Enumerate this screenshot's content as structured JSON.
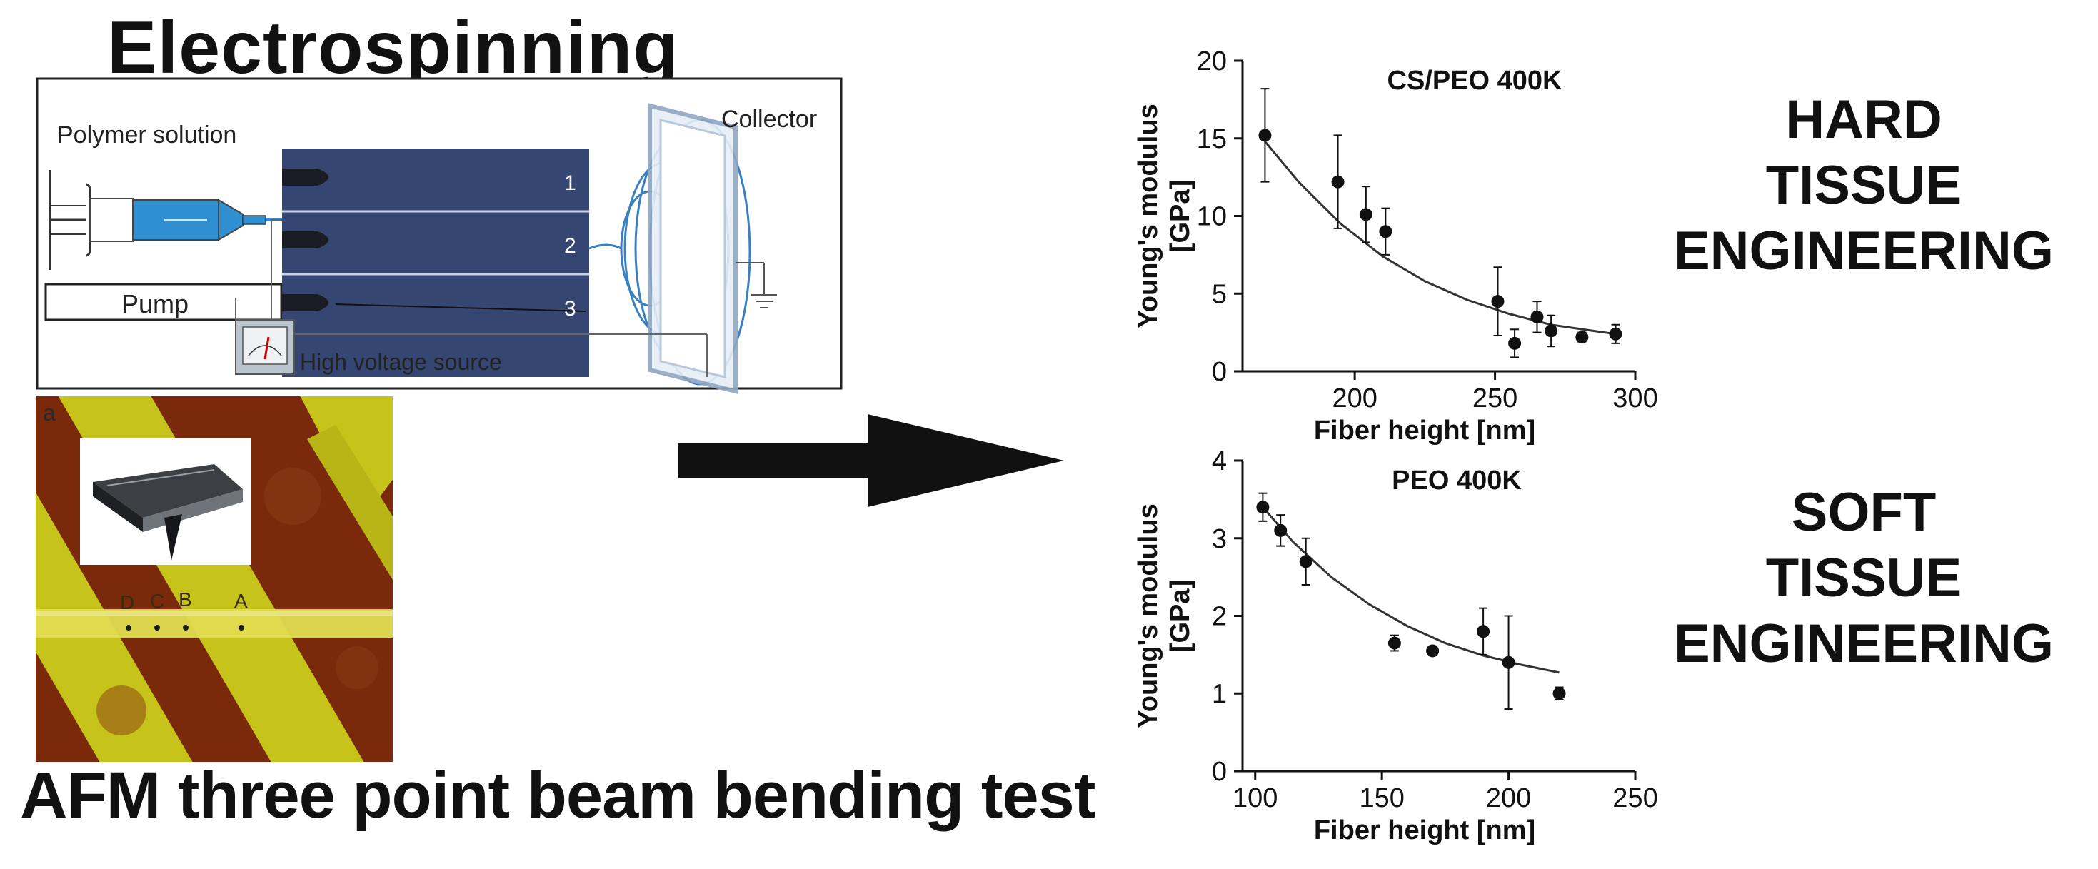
{
  "titles": {
    "electrospinning": "Electrospinning",
    "afm_test": "AFM three point beam bending test"
  },
  "setup": {
    "polymer_solution": "Polymer solution",
    "pump": "Pump",
    "collector": "Collector",
    "high_voltage": "High voltage source",
    "jets": [
      "1",
      "2",
      "3"
    ]
  },
  "afm": {
    "panel_letter": "a",
    "points": [
      "D",
      "C",
      "B",
      "A"
    ],
    "colors": {
      "stripe": "#d8d41e",
      "background": "#7a2a0a"
    }
  },
  "labels": {
    "hard": [
      "HARD",
      "TISSUE",
      "ENGINEERING"
    ],
    "soft": [
      "SOFT",
      "TISSUE",
      "ENGINEERING"
    ]
  },
  "chart_data": [
    {
      "type": "scatter",
      "title": "CS/PEO 400K",
      "xlabel": "Fiber height [nm]",
      "ylabel": "Young's modulus",
      "ylabel2": "[GPa]",
      "xlim": [
        160,
        300
      ],
      "ylim": [
        0,
        20
      ],
      "xticks": [
        200,
        250,
        300
      ],
      "yticks": [
        0,
        5,
        10,
        15,
        20
      ],
      "points": [
        {
          "x": 168,
          "y": 15.2,
          "err": 3.0
        },
        {
          "x": 194,
          "y": 12.2,
          "err": 3.0
        },
        {
          "x": 204,
          "y": 10.1,
          "err": 1.8
        },
        {
          "x": 211,
          "y": 9.0,
          "err": 1.5
        },
        {
          "x": 251,
          "y": 4.5,
          "err": 2.2
        },
        {
          "x": 257,
          "y": 1.8,
          "err": 0.9
        },
        {
          "x": 265,
          "y": 3.5,
          "err": 1.0
        },
        {
          "x": 270,
          "y": 2.6,
          "err": 1.0
        },
        {
          "x": 281,
          "y": 2.2,
          "err": 0.3
        },
        {
          "x": 293,
          "y": 2.4,
          "err": 0.6
        }
      ],
      "fit": {
        "x": [
          168,
          180,
          195,
          210,
          225,
          240,
          255,
          270,
          285,
          293
        ],
        "y": [
          14.8,
          12.2,
          9.5,
          7.4,
          5.8,
          4.6,
          3.7,
          3.0,
          2.6,
          2.4
        ]
      }
    },
    {
      "type": "scatter",
      "title": "PEO 400K",
      "xlabel": "Fiber height [nm]",
      "ylabel": "Young's modulus",
      "ylabel2": "[GPa]",
      "xlim": [
        95,
        250
      ],
      "ylim": [
        0,
        4
      ],
      "xticks": [
        100,
        150,
        200,
        250
      ],
      "yticks": [
        0,
        1,
        2,
        3,
        4
      ],
      "points": [
        {
          "x": 103,
          "y": 3.4,
          "err": 0.18
        },
        {
          "x": 110,
          "y": 3.1,
          "err": 0.2
        },
        {
          "x": 120,
          "y": 2.7,
          "err": 0.3
        },
        {
          "x": 155,
          "y": 1.65,
          "err": 0.1
        },
        {
          "x": 170,
          "y": 1.55,
          "err": 0.06
        },
        {
          "x": 190,
          "y": 1.8,
          "err": 0.3
        },
        {
          "x": 200,
          "y": 1.4,
          "err": 0.6
        },
        {
          "x": 220,
          "y": 1.0,
          "err": 0.08
        }
      ],
      "fit": {
        "x": [
          103,
          115,
          130,
          145,
          160,
          175,
          190,
          205,
          220
        ],
        "y": [
          3.4,
          2.95,
          2.5,
          2.15,
          1.87,
          1.65,
          1.49,
          1.37,
          1.27
        ]
      }
    }
  ]
}
